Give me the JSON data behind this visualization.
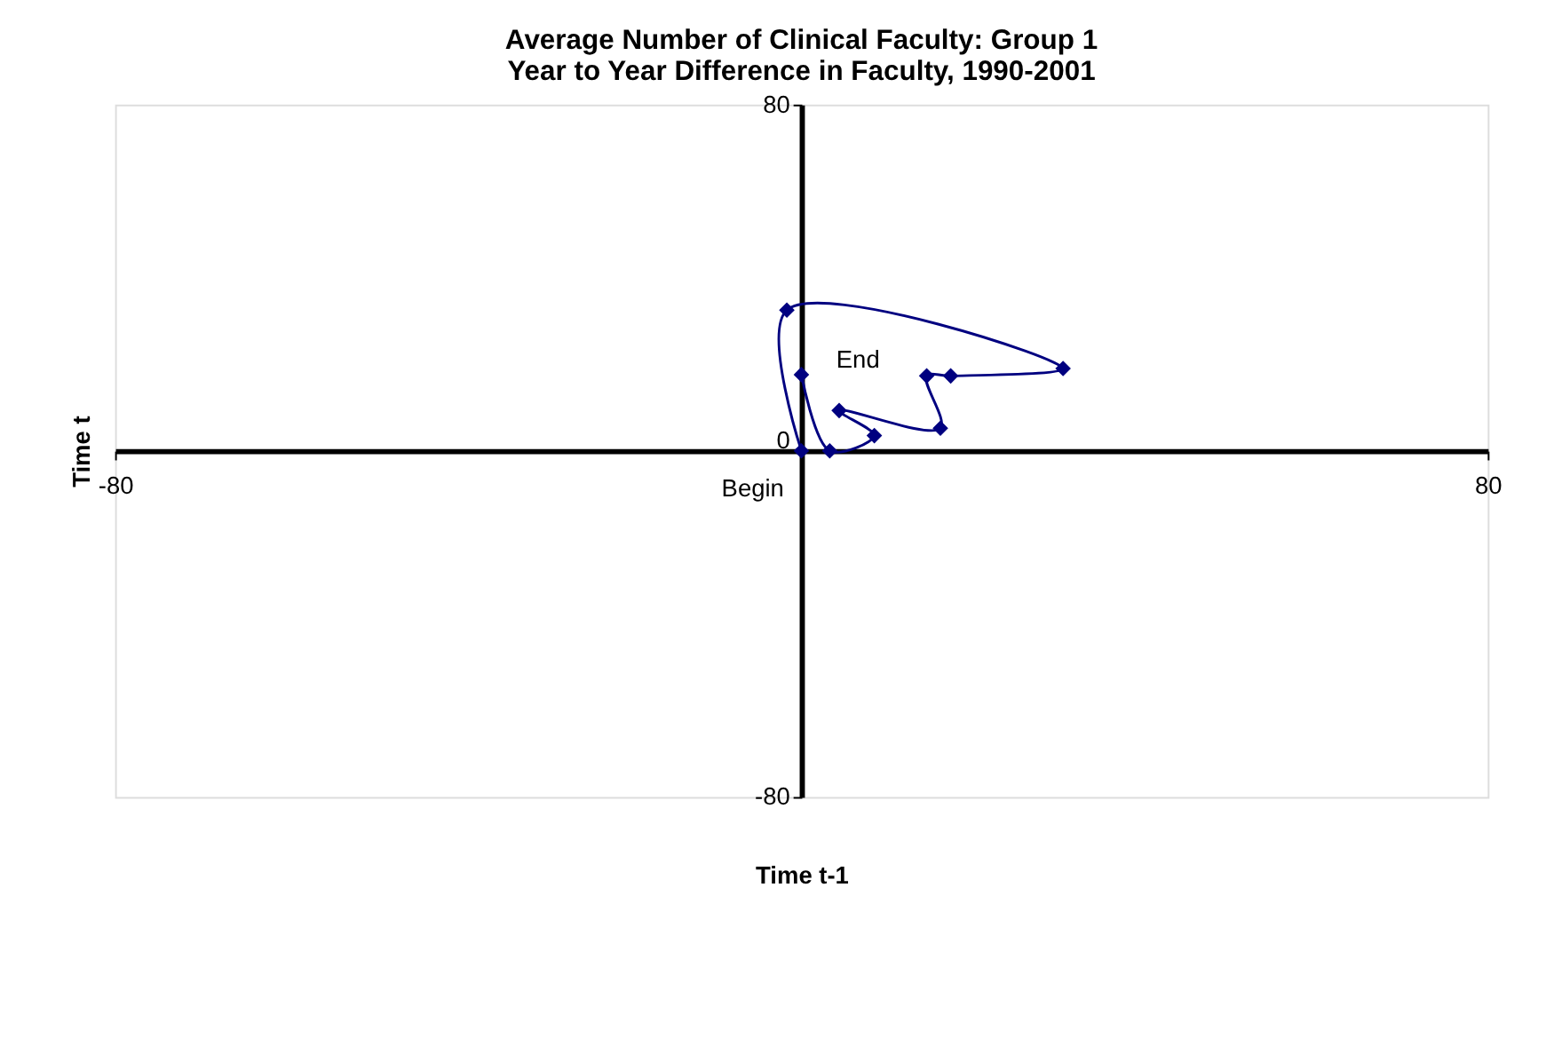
{
  "chart_data": {
    "type": "line",
    "title": [
      "Average Number of Clinical Faculty:  Group 1",
      "Year to Year Difference in Faculty, 1990-2001"
    ],
    "xlabel": "Time t-1",
    "ylabel": "Time t",
    "x": [
      0,
      -1.7,
      30.5,
      17.4,
      14.6,
      16.2,
      4.4,
      8.5,
      3.3,
      0
    ],
    "series": [
      {
        "color": "#000080",
        "values": [
          0,
          32.5,
          19,
          17.3,
          17.3,
          5.2,
          9.3,
          3.5,
          0,
          17.6
        ]
      }
    ],
    "marker": "diamond",
    "line_style": "solid",
    "xlim": [
      -80,
      80
    ],
    "xticks": [
      -80,
      {
        "value": 0,
        "label": null
      },
      80
    ],
    "ylim": [
      -80,
      80
    ],
    "yticks": [
      -80,
      0,
      80
    ],
    "grid": false,
    "annotations": [
      {
        "text": "Begin",
        "x": 0,
        "y": 0
      },
      {
        "text": "End",
        "x": 0,
        "y": 17.6
      }
    ]
  }
}
